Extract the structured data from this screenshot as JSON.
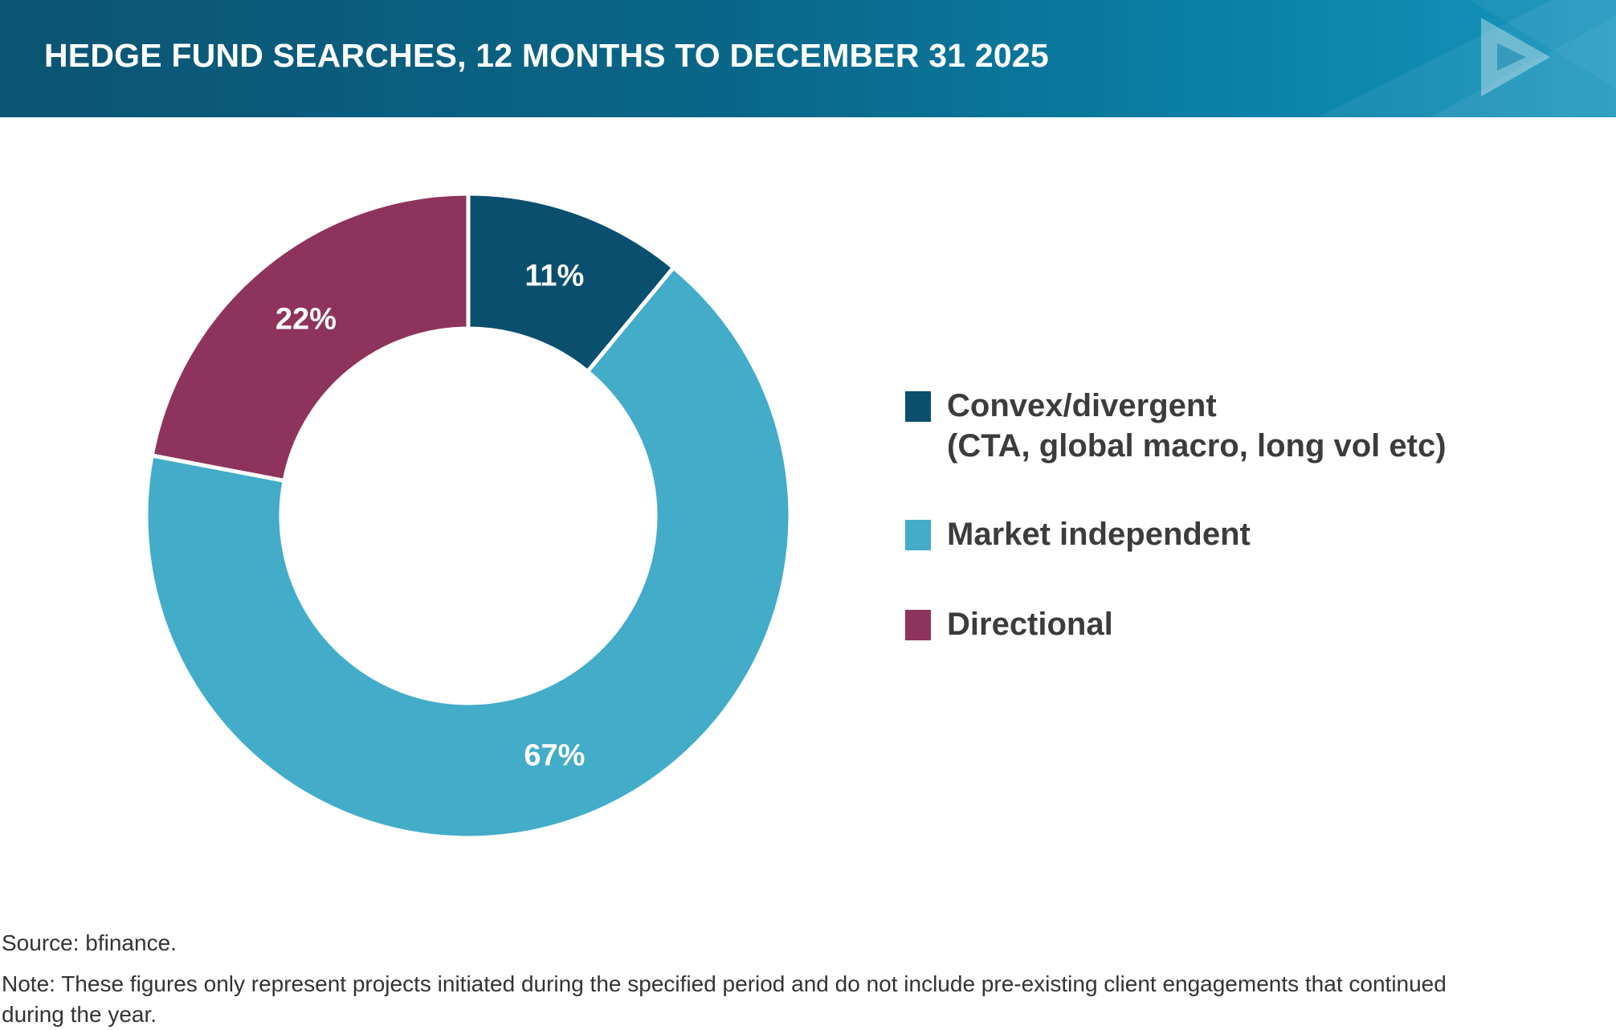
{
  "header": {
    "title": "HEDGE FUND SEARCHES, 12 MONTHS TO DECEMBER 31 2025"
  },
  "chart_data": {
    "type": "pie",
    "variant": "donut",
    "title": "HEDGE FUND SEARCHES, 12 MONTHS TO DECEMBER 31 2025",
    "slices": [
      {
        "label": "Convex/divergent",
        "sublabel": "(CTA, global macro, long vol etc)",
        "value": 11,
        "display": "11%",
        "color": "#0a4f6e"
      },
      {
        "label": "Market independent",
        "sublabel": "",
        "value": 67,
        "display": "67%",
        "color": "#42acc9"
      },
      {
        "label": "Directional",
        "sublabel": "",
        "value": 22,
        "display": "22%",
        "color": "#8e345c"
      }
    ],
    "legend_position": "right"
  },
  "footer": {
    "source": "Source: bfinance.",
    "note": "Note: These figures only represent projects initiated during the specified period and do not include pre-existing client engagements that continued during the year."
  }
}
